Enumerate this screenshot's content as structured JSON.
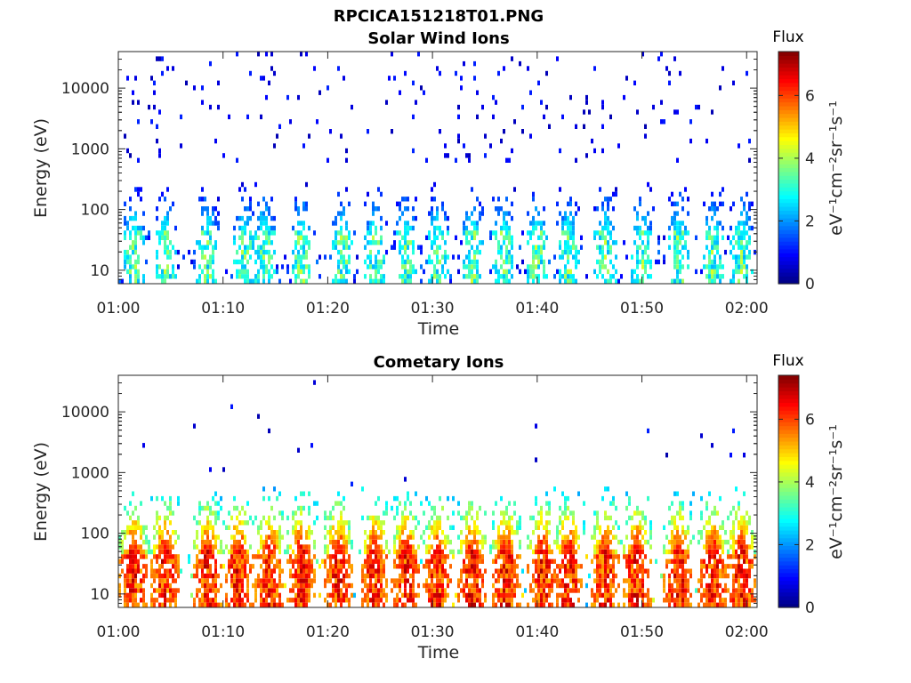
{
  "figure": {
    "title": "RPCICA151218T01.PNG"
  },
  "chart_data": [
    {
      "type": "heatmap",
      "title": "Solar Wind Ions",
      "xlabel": "Time",
      "ylabel": "Energy (eV)",
      "x_tick_labels": [
        "01:00",
        "01:10",
        "01:20",
        "01:30",
        "01:40",
        "01:50",
        "02:00"
      ],
      "y_tick_labels": [
        "10",
        "100",
        "1000",
        "10000"
      ],
      "y_ticks": [
        10,
        100,
        1000,
        10000
      ],
      "ylim": [
        6,
        40000
      ],
      "yscale": "log",
      "xlim_minutes": [
        0,
        61
      ],
      "colorbar": {
        "title": "Flux",
        "label": "eV⁻¹cm⁻²sr⁻¹s⁻¹",
        "ticks": [
          "0",
          "2",
          "4",
          "6"
        ],
        "range": [
          0,
          7.4
        ],
        "colormap": "jet"
      },
      "burst_centers_minutes": [
        1.5,
        4.5,
        8.5,
        12.0,
        14.0,
        17.5,
        21.5,
        24.5,
        27.5,
        30.5,
        33.8,
        36.8,
        40.0,
        43.0,
        46.5,
        50.0,
        53.5,
        56.8,
        59.5
      ],
      "peak_flux": 4.2
    },
    {
      "type": "heatmap",
      "title": "Cometary Ions",
      "xlabel": "Time",
      "ylabel": "Energy (eV)",
      "x_tick_labels": [
        "01:00",
        "01:10",
        "01:20",
        "01:30",
        "01:40",
        "01:50",
        "02:00"
      ],
      "y_tick_labels": [
        "10",
        "100",
        "1000",
        "10000"
      ],
      "y_ticks": [
        10,
        100,
        1000,
        10000
      ],
      "ylim": [
        6,
        40000
      ],
      "yscale": "log",
      "xlim_minutes": [
        0,
        61
      ],
      "colorbar": {
        "title": "Flux",
        "label": "eV⁻¹cm⁻²sr⁻¹s⁻¹",
        "ticks": [
          "0",
          "2",
          "4",
          "6"
        ],
        "range": [
          0,
          7.4
        ],
        "colormap": "jet"
      },
      "burst_centers_minutes": [
        1.5,
        4.5,
        8.5,
        11.5,
        14.5,
        17.5,
        21.0,
        24.5,
        27.5,
        30.5,
        33.8,
        37.0,
        40.5,
        43.0,
        46.5,
        49.5,
        53.5,
        56.8,
        59.5
      ],
      "peak_flux": 6.5
    }
  ]
}
